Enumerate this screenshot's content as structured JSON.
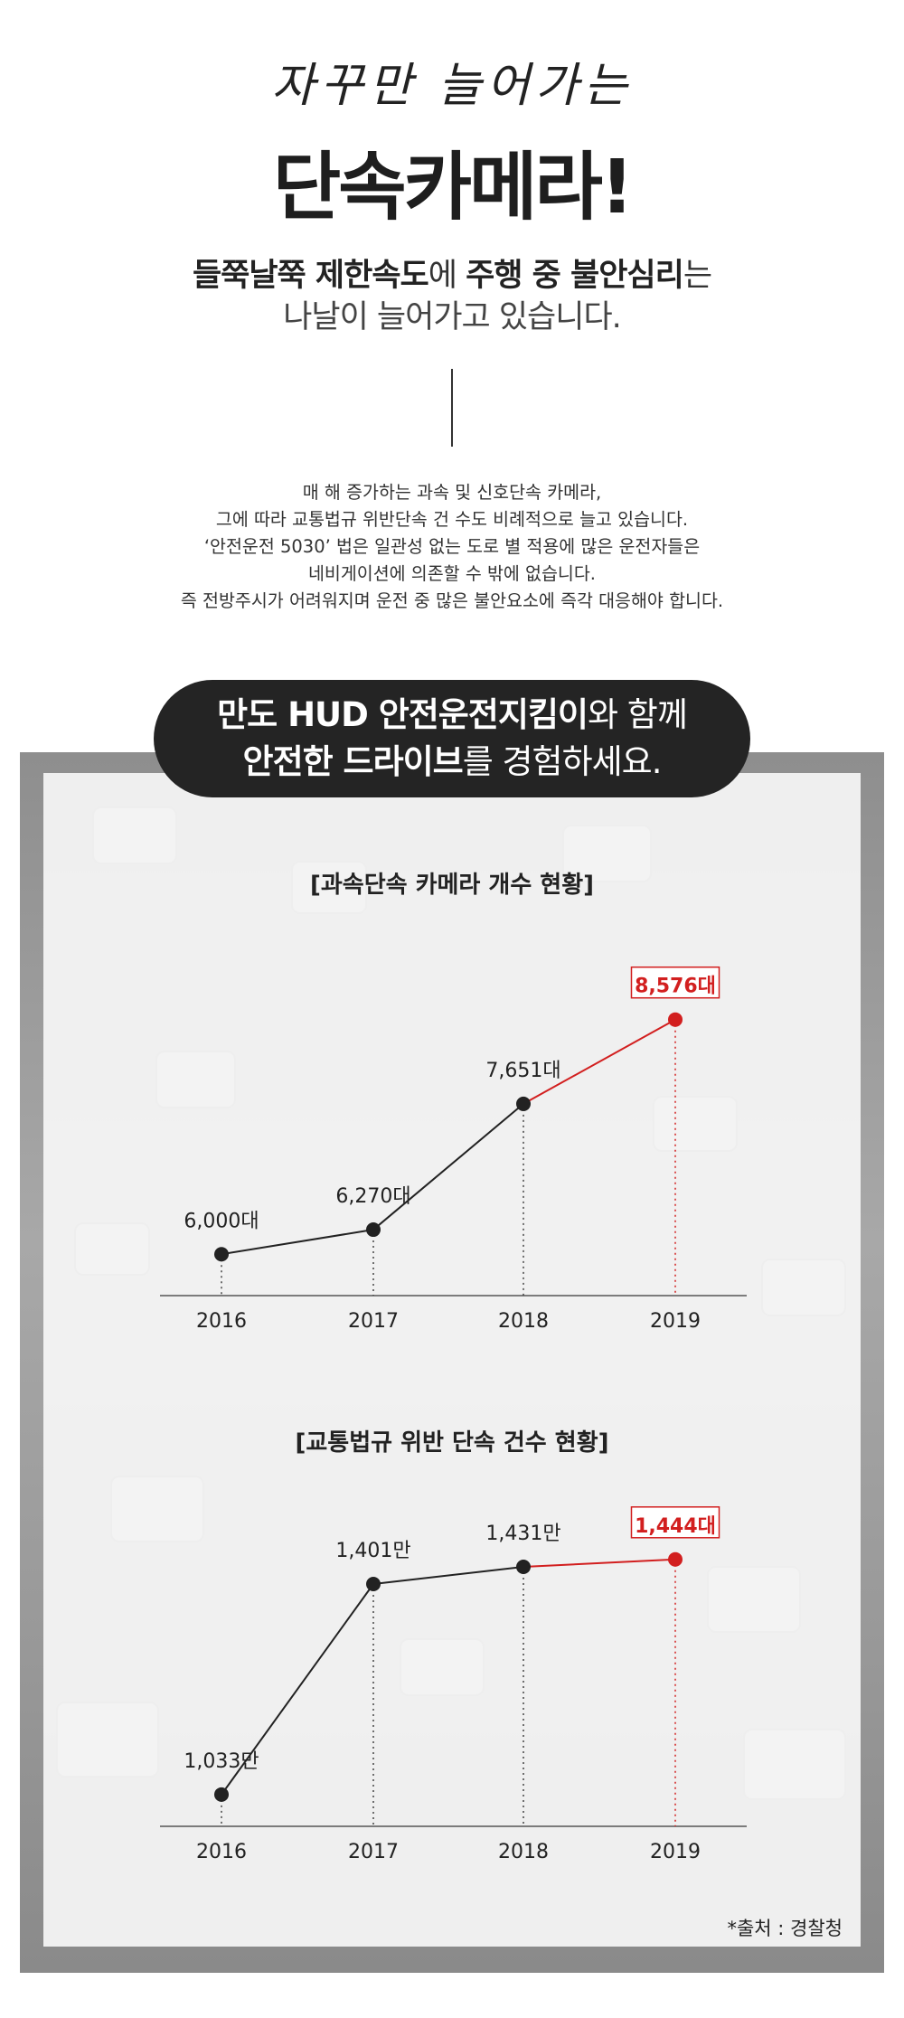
{
  "header": {
    "script_title": "자꾸만 늘어가는",
    "main_title": "단속카메라!",
    "subtitle_line1_bold1": "들쭉날쭉 제한속도",
    "subtitle_line1_mid": "에 ",
    "subtitle_line1_bold2": "주행 중 불안심리",
    "subtitle_line1_end": "는",
    "subtitle_line2": "나날이 늘어가고 있습니다."
  },
  "paragraph": [
    "매 해 증가하는 과속 및 신호단속 카메라,",
    "그에 따라 교통법규 위반단속 건 수도 비례적으로 늘고 있습니다.",
    "‘안전운전 5030’ 법은 일관성 없는 도로 별 적용에 많은 운전자들은",
    "네비게이션에 의존할 수 밖에 없습니다.",
    "즉 전방주시가 어려워지며 운전 중 많은 불안요소에 즉각 대응해야 합니다."
  ],
  "pill": {
    "line1_bold": "만도 HUD 안전운전지킴이",
    "line1_rest": "와 함께",
    "line2_bold": "안전한 드라이브",
    "line2_rest": "를 경험하세요."
  },
  "colors": {
    "highlight": "#d21f1f",
    "line": "#222222",
    "pill_bg": "#242424"
  },
  "chart_data": [
    {
      "type": "line",
      "title": "[과속단속 카메라 개수 현황]",
      "categories": [
        "2016",
        "2017",
        "2018",
        "2019"
      ],
      "values": [
        6000,
        6270,
        7651,
        8576
      ],
      "labels": [
        "6,000대",
        "6,270대",
        "7,651대",
        "8,576대"
      ],
      "highlight_index": 3,
      "ylim": [
        5000,
        9000
      ]
    },
    {
      "type": "line",
      "title": "[교통법규 위반 단속 건수 현황]",
      "categories": [
        "2016",
        "2017",
        "2018",
        "2019"
      ],
      "values": [
        1033,
        1401,
        1431,
        1444
      ],
      "labels": [
        "1,033만",
        "1,401만",
        "1,431만",
        "1,444대"
      ],
      "highlight_index": 3,
      "ylim": [
        900,
        1480
      ]
    }
  ],
  "source": "*출처 : 경찰청"
}
